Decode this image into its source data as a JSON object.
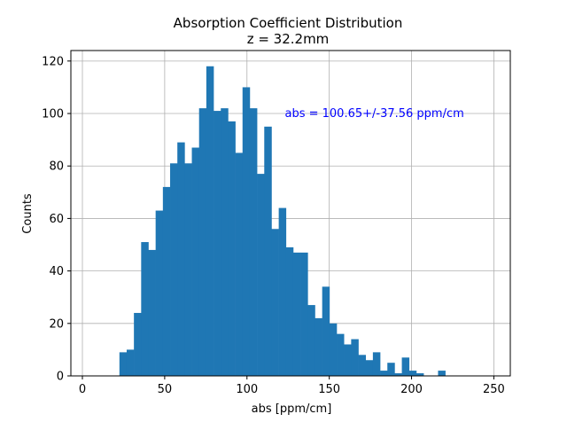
{
  "chart_data": {
    "type": "bar",
    "title": "Absorption Coefficient Distribution",
    "subtitle": "z = 32.2mm",
    "xlabel": "abs [ppm/cm]",
    "ylabel": "Counts",
    "xlim": [
      -7,
      260
    ],
    "ylim": [
      0,
      124
    ],
    "grid": true,
    "bar_color": "#1f77b4",
    "annotation": {
      "text": "abs = 100.65+/-37.56 ppm/cm",
      "color": "#0000ff",
      "x": 123,
      "y": 100
    },
    "x_ticks": [
      0,
      50,
      100,
      150,
      200,
      250
    ],
    "y_ticks": [
      0,
      20,
      40,
      60,
      80,
      100,
      120
    ],
    "bin_start": 22.5,
    "bin_width": 4.4,
    "values": [
      9,
      10,
      24,
      51,
      48,
      63,
      72,
      81,
      89,
      81,
      87,
      102,
      118,
      101,
      102,
      97,
      85,
      110,
      102,
      77,
      95,
      56,
      64,
      49,
      47,
      47,
      27,
      22,
      34,
      20,
      16,
      12,
      14,
      8,
      6,
      9,
      2,
      5,
      1,
      7,
      2,
      1,
      0,
      0,
      2
    ]
  }
}
